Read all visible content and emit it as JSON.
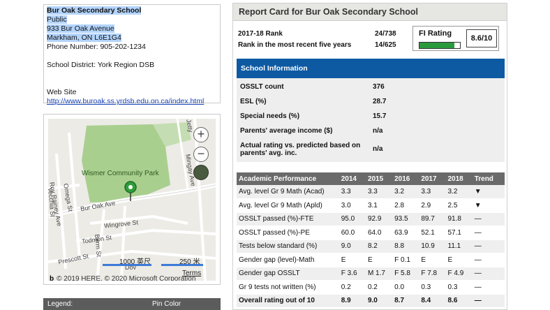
{
  "address": {
    "school_name": "Bur Oak Secondary School",
    "type": "Public",
    "street": "933 Bur Oak Avenue",
    "city": "Markham, ON L6E1G4",
    "phone": "Phone Number: 905-202-1234",
    "district": "School District: York Region DSB",
    "website_label": "Web Site",
    "website_url": "http://www.buroak.ss.yrdsb.edu.on.ca/index.html"
  },
  "map": {
    "park_label": "Wismer Community Park",
    "streets": {
      "bur_oak_ave": "Bur Oak Ave",
      "wingrove_st": "Wingrove St",
      "todmon_st": "Todmon St",
      "roy_rainey_ave": "Roy Rainey Ave",
      "omega_st": "Omega St",
      "vecchia_st": "Vecchia St",
      "mingay_ave": "Mingay Ave",
      "prescott_st": "Prescott St",
      "berm_st": "Berm St",
      "dov": "Dov",
      "jetty": "Jetty"
    },
    "zoom_in": "+",
    "zoom_out": "−",
    "scale_ft": "1000 英尺",
    "scale_m": "250 米",
    "terms": "Terms",
    "copyright": "© 2019 HERE, © 2020 Microsoft Corporation"
  },
  "legend": {
    "label": "Legend:",
    "pin_color": "Pin Color"
  },
  "report": {
    "title": "Report Card for Bur Oak Secondary School",
    "rank_label": "2017-18 Rank",
    "rank_value": "24/738",
    "rank5_label": "Rank in the most recent five years",
    "rank5_value": "14/625",
    "fi_title": "FI Rating",
    "fi_score": "8.6/10",
    "fi_fraction": 0.86,
    "info_title": "School Information",
    "info": [
      {
        "label": "OSSLT count",
        "value": "376"
      },
      {
        "label": "ESL (%)",
        "value": "28.7"
      },
      {
        "label": "Special needs (%)",
        "value": "15.7"
      },
      {
        "label": "Parents' average income ($)",
        "value": "n/a"
      },
      {
        "label": "Actual rating vs. predicted based on parents' avg. inc.",
        "value": "n/a"
      }
    ],
    "academic": {
      "headers": [
        "Academic Performance",
        "2014",
        "2015",
        "2016",
        "2017",
        "2018",
        "Trend"
      ],
      "rows": [
        {
          "label": "Avg. level Gr 9 Math (Acad)",
          "vals": [
            "3.3",
            "3.3",
            "3.2",
            "3.3",
            "3.2"
          ],
          "trend": "▼"
        },
        {
          "label": "Avg. level Gr 9 Math (Apld)",
          "vals": [
            "3.0",
            "3.1",
            "2.8",
            "2.9",
            "2.5"
          ],
          "trend": "▼"
        },
        {
          "label": "OSSLT passed (%)-FTE",
          "vals": [
            "95.0",
            "92.9",
            "93.5",
            "89.7",
            "91.8"
          ],
          "trend": "—"
        },
        {
          "label": "OSSLT passed (%)-PE",
          "vals": [
            "60.0",
            "64.0",
            "63.9",
            "52.1",
            "57.1"
          ],
          "trend": "—"
        },
        {
          "label": "Tests below standard (%)",
          "vals": [
            "9.0",
            "8.2",
            "8.8",
            "10.9",
            "11.1"
          ],
          "trend": "—"
        },
        {
          "label": "Gender gap (level)-Math",
          "vals": [
            "E",
            "E",
            "F 0.1",
            "E",
            "E"
          ],
          "trend": "—"
        },
        {
          "label": "Gender gap OSSLT",
          "vals": [
            "F 3.6",
            "M 1.7",
            "F 5.8",
            "F 7.8",
            "F 4.9"
          ],
          "trend": "—"
        },
        {
          "label": "Gr 9 tests not written (%)",
          "vals": [
            "0.2",
            "0.2",
            "0.0",
            "0.3",
            "0.3"
          ],
          "trend": "—"
        },
        {
          "label": "Overall rating out of 10",
          "vals": [
            "8.9",
            "9.0",
            "8.7",
            "8.4",
            "8.6"
          ],
          "trend": "—"
        }
      ]
    }
  }
}
